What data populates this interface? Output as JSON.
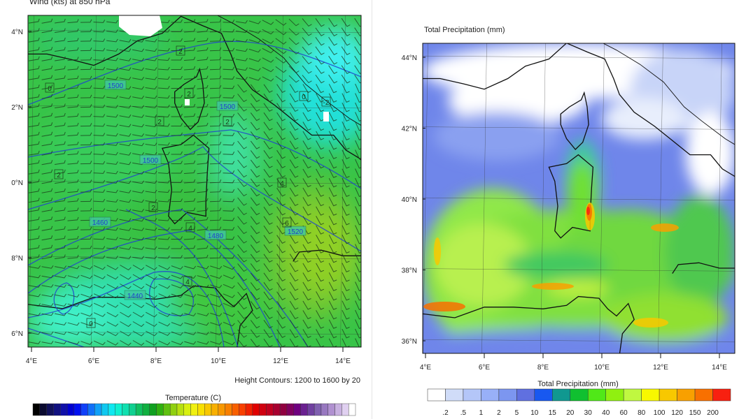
{
  "left_panel": {
    "title": "Wind  (kts)    at  850 hPa",
    "y_ticks": [
      "4°N",
      "2°N",
      "0°N",
      "8°N",
      "6°N"
    ],
    "x_ticks": [
      "4°E",
      "6°E",
      "8°E",
      "10°E",
      "12°E",
      "14°E"
    ],
    "contour_note": "Height Contours: 1200 to 1600 by 20",
    "contour_labels": [
      "1500",
      "1500",
      "1500",
      "1460",
      "1480",
      "1520",
      "1440"
    ],
    "temp_labels": [
      "0",
      "2",
      "2",
      "2",
      "0",
      "-2",
      "2",
      "2",
      "4",
      "6",
      "4",
      "2",
      "0",
      "4"
    ],
    "colorbar_title": "Temperature  (C)",
    "colorbar_colors": [
      "#000000",
      "#0a0a30",
      "#10105a",
      "#101080",
      "#1010a8",
      "#0000d0",
      "#0010f0",
      "#1040f8",
      "#1070f8",
      "#10a0f8",
      "#10c8f0",
      "#10e8f0",
      "#10f0d0",
      "#10e0b0",
      "#10d090",
      "#10c060",
      "#10b040",
      "#10a020",
      "#30b010",
      "#60c010",
      "#90d010",
      "#b8e010",
      "#d8f010",
      "#f0f010",
      "#f8e000",
      "#f8c800",
      "#f8b000",
      "#f89800",
      "#f88000",
      "#f86000",
      "#f84000",
      "#f02000",
      "#e00000",
      "#d00010",
      "#c00020",
      "#a80030",
      "#900040",
      "#800060",
      "#700080",
      "#6a2090",
      "#7040a0",
      "#8060b0",
      "#9878c0",
      "#b090d0",
      "#c8b0e0",
      "#e0d0f0",
      "#ffffff"
    ],
    "accent_contour_color": "#2244cc"
  },
  "right_panel": {
    "title": "Total Precipitation  (mm)",
    "y_ticks": [
      "44°N",
      "42°N",
      "40°N",
      "38°N",
      "36°N"
    ],
    "x_ticks": [
      "4°E",
      "6°E",
      "8°E",
      "10°E",
      "12°E",
      "14°E"
    ],
    "colorbar_title": "Total Precipitation  (mm)",
    "colorbar_labels": [
      ".2",
      ".5",
      "1",
      "2",
      "5",
      "10",
      "15",
      "20",
      "30",
      "40",
      "60",
      "80",
      "100",
      "120",
      "150",
      "200"
    ],
    "colorbar_colors": [
      "#ffffff",
      "#d0dcf8",
      "#b4c6f8",
      "#98b0f8",
      "#7c96f0",
      "#6070e0",
      "#1858f0",
      "#109890",
      "#10c030",
      "#50e818",
      "#90f010",
      "#c0f840",
      "#f8f800",
      "#f8c800",
      "#f8a000",
      "#f87000",
      "#f82010"
    ]
  }
}
